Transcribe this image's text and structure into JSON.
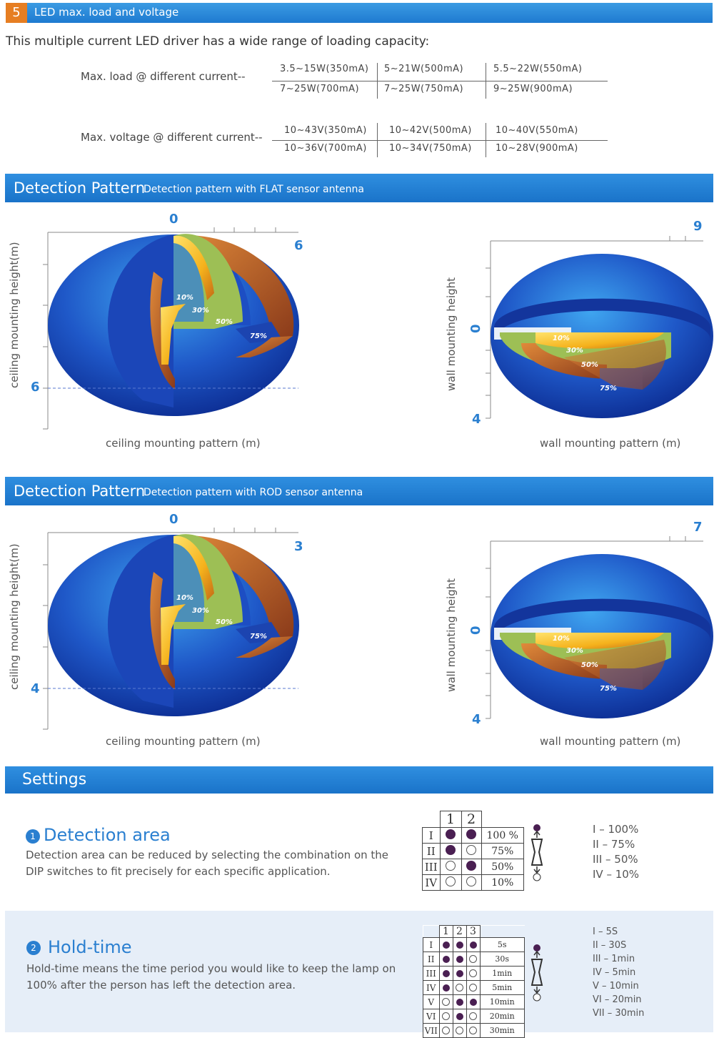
{
  "section5": {
    "number": "5",
    "title": "LED max. load and voltage",
    "intro": "This multiple current LED driver has a wide range of loading capacity:",
    "load_label": "Max. load @ different current--",
    "load_rows": [
      [
        "3.5~15W(350mA)",
        "5~21W(500mA)",
        "5.5~22W(550mA)"
      ],
      [
        "7~25W(700mA)",
        "7~25W(750mA)",
        "9~25W(900mA)"
      ]
    ],
    "voltage_label": "Max. voltage @ different current--",
    "voltage_rows": [
      [
        "10~43V(350mA)",
        "10~42V(500mA)",
        "10~40V(550mA)"
      ],
      [
        "10~36V(700mA)",
        "10~34V(750mA)",
        "10~28V(900mA)"
      ]
    ]
  },
  "flat": {
    "heading": "Detection Pattern",
    "subheading": "Detection pattern with FLAT sensor antenna",
    "ceiling": {
      "top": "0",
      "right": "6",
      "left": "6",
      "ylabel": "ceiling mounting height(m)",
      "xlabel": "ceiling mounting pattern (m)"
    },
    "wall": {
      "right": "9",
      "zero": "0",
      "bottom": "4",
      "ylabel": "wall mounting height",
      "xlabel": "wall mounting pattern (m)"
    }
  },
  "rod": {
    "heading": "Detection Pattern",
    "subheading": "Detection pattern with ROD sensor antenna",
    "ceiling": {
      "top": "0",
      "right": "3",
      "left": "4",
      "ylabel": "ceiling mounting height(m)",
      "xlabel": "ceiling mounting pattern (m)"
    },
    "wall": {
      "right": "7",
      "zero": "0",
      "bottom": "4",
      "ylabel": "wall mounting height",
      "xlabel": "wall mounting pattern (m)"
    }
  },
  "percent_labels": [
    "10%",
    "30%",
    "50%",
    "75%"
  ],
  "settings": {
    "heading": "Settings",
    "detection": {
      "num": "1",
      "title": "Detection area",
      "text1": "Detection area can be reduced by selecting the combination on the",
      "text2": "DIP switches to fit precisely for each specific application.",
      "cols": [
        "1",
        "2"
      ],
      "rows": [
        {
          "id": "I",
          "s": [
            "on",
            "on"
          ],
          "v": "100 %"
        },
        {
          "id": "II",
          "s": [
            "on",
            "off"
          ],
          "v": "75%"
        },
        {
          "id": "III",
          "s": [
            "off",
            "on"
          ],
          "v": "50%"
        },
        {
          "id": "IV",
          "s": [
            "off",
            "off"
          ],
          "v": "10%"
        }
      ],
      "legend": [
        "I –  100%",
        "II –  75%",
        "III –  50%",
        "IV –  10%"
      ]
    },
    "hold": {
      "num": "2",
      "title": "Hold-time",
      "text1": "Hold-time means the time period you would like to keep the lamp on",
      "text2": "100% after the person has left the detection area.",
      "cols": [
        "1",
        "2",
        "3"
      ],
      "rows": [
        {
          "id": "I",
          "s": [
            "on",
            "on",
            "on"
          ],
          "v": "5s"
        },
        {
          "id": "II",
          "s": [
            "on",
            "on",
            "off"
          ],
          "v": "30s"
        },
        {
          "id": "III",
          "s": [
            "on",
            "on",
            "off"
          ],
          "v": "1min"
        },
        {
          "id": "IV",
          "s": [
            "on",
            "off",
            "off"
          ],
          "v": "5min"
        },
        {
          "id": "V",
          "s": [
            "off",
            "on",
            "on"
          ],
          "v": "10min"
        },
        {
          "id": "VI",
          "s": [
            "off",
            "on",
            "off"
          ],
          "v": "20min"
        },
        {
          "id": "VII",
          "s": [
            "off",
            "off",
            "off"
          ],
          "v": "30min"
        }
      ],
      "legend": [
        "I – 5S",
        "II – 30S",
        "III – 1min",
        "IV – 5min",
        "V – 10min",
        "VI – 20min",
        "VII – 30min"
      ]
    }
  }
}
